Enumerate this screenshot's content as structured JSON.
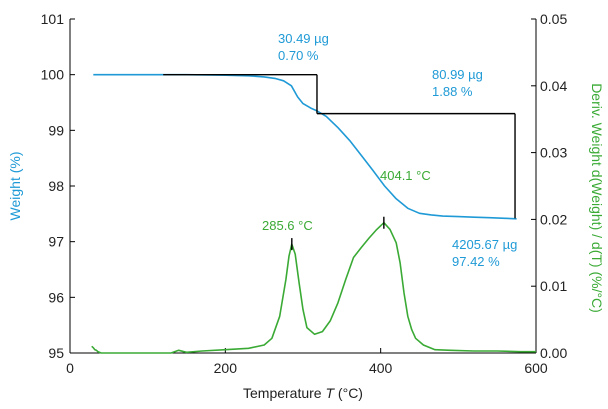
{
  "colors": {
    "weight": "#1f9ad6",
    "deriv": "#3aaa35",
    "axis": "#000000",
    "annotation_line": "#000000"
  },
  "chart_data": {
    "type": "line",
    "xlabel_prefix": "Temperature ",
    "xlabel_var": "T",
    "xlabel_suffix": " (°C)",
    "ylabel": "Weight (%)",
    "y2label": "Deriv. Weight d(Weight) / d(T) (%/°C)",
    "xlim": [
      0,
      600
    ],
    "ylim": [
      95,
      101
    ],
    "y2lim": [
      0.0,
      0.05
    ],
    "x_ticks": [
      "0",
      "200",
      "400",
      "600"
    ],
    "x_tick_values": [
      0,
      200,
      400,
      600
    ],
    "y_ticks": [
      "95",
      "96",
      "97",
      "98",
      "99",
      "100",
      "101"
    ],
    "y_tick_values": [
      95,
      96,
      97,
      98,
      99,
      100,
      101
    ],
    "y2_ticks": [
      "0.00",
      "0.01",
      "0.02",
      "0.03",
      "0.04",
      "0.05"
    ],
    "y2_tick_values": [
      0.0,
      0.01,
      0.02,
      0.03,
      0.04,
      0.05
    ],
    "grid": false,
    "series": [
      {
        "name": "Weight",
        "axis": "left",
        "x": [
          30,
          60,
          100,
          150,
          200,
          230,
          250,
          265,
          275,
          285,
          293,
          300,
          310,
          318,
          330,
          345,
          360,
          375,
          390,
          405,
          420,
          435,
          450,
          465,
          480,
          500,
          520,
          540,
          560,
          575
        ],
        "y": [
          100.0,
          100.0,
          100.0,
          100.0,
          99.99,
          99.98,
          99.96,
          99.93,
          99.89,
          99.8,
          99.6,
          99.48,
          99.4,
          99.35,
          99.25,
          99.05,
          98.82,
          98.55,
          98.28,
          98.0,
          97.77,
          97.6,
          97.51,
          97.48,
          97.46,
          97.45,
          97.44,
          97.43,
          97.42,
          97.41
        ]
      },
      {
        "name": "Deriv. Weight",
        "axis": "right",
        "x": [
          28,
          30,
          32,
          34,
          36,
          40,
          60,
          100,
          130,
          140,
          150,
          170,
          200,
          230,
          250,
          260,
          270,
          278,
          282,
          285.6,
          290,
          295,
          300,
          305,
          315,
          325,
          335,
          345,
          355,
          365,
          375,
          385,
          395,
          404.1,
          412,
          420,
          425,
          430,
          435,
          440,
          445,
          455,
          470,
          490,
          520,
          550,
          580,
          600
        ],
        "y": [
          0.001,
          0.0008,
          0.0005,
          0.0004,
          0.0002,
          0.0,
          0.0,
          0.0,
          0.0,
          0.0004,
          0.0001,
          0.0003,
          0.0005,
          0.0007,
          0.0012,
          0.0022,
          0.0055,
          0.011,
          0.0145,
          0.0163,
          0.0148,
          0.0105,
          0.0065,
          0.0038,
          0.0028,
          0.0032,
          0.0048,
          0.0075,
          0.011,
          0.0143,
          0.0158,
          0.0172,
          0.0185,
          0.0195,
          0.0185,
          0.0165,
          0.0135,
          0.009,
          0.0055,
          0.0035,
          0.0022,
          0.0012,
          0.0005,
          0.0004,
          0.0003,
          0.0003,
          0.0002,
          0.0002
        ]
      }
    ],
    "steps": [
      {
        "x_start": 120,
        "x_end": 318,
        "y_top": 100.0,
        "y_bottom": 99.3
      },
      {
        "x_start": 318,
        "x_end": 573,
        "y_top": 99.3,
        "y_bottom": 97.42
      }
    ],
    "peak_markers": [
      {
        "x": 285.6,
        "y2": 0.0163
      },
      {
        "x": 404.1,
        "y2": 0.0195
      }
    ],
    "annotations": [
      {
        "id": "step1",
        "lines": [
          "30.49 µg",
          "0.70 %"
        ],
        "color": "weight"
      },
      {
        "id": "step2",
        "lines": [
          "80.99 µg",
          "1.88 %"
        ],
        "color": "weight"
      },
      {
        "id": "residue",
        "lines": [
          "4205.67 µg",
          "97.42 %"
        ],
        "color": "weight"
      },
      {
        "id": "peak1",
        "lines": [
          "285.6 °C"
        ],
        "color": "deriv"
      },
      {
        "id": "peak2",
        "lines": [
          "404.1 °C"
        ],
        "color": "deriv"
      }
    ]
  }
}
